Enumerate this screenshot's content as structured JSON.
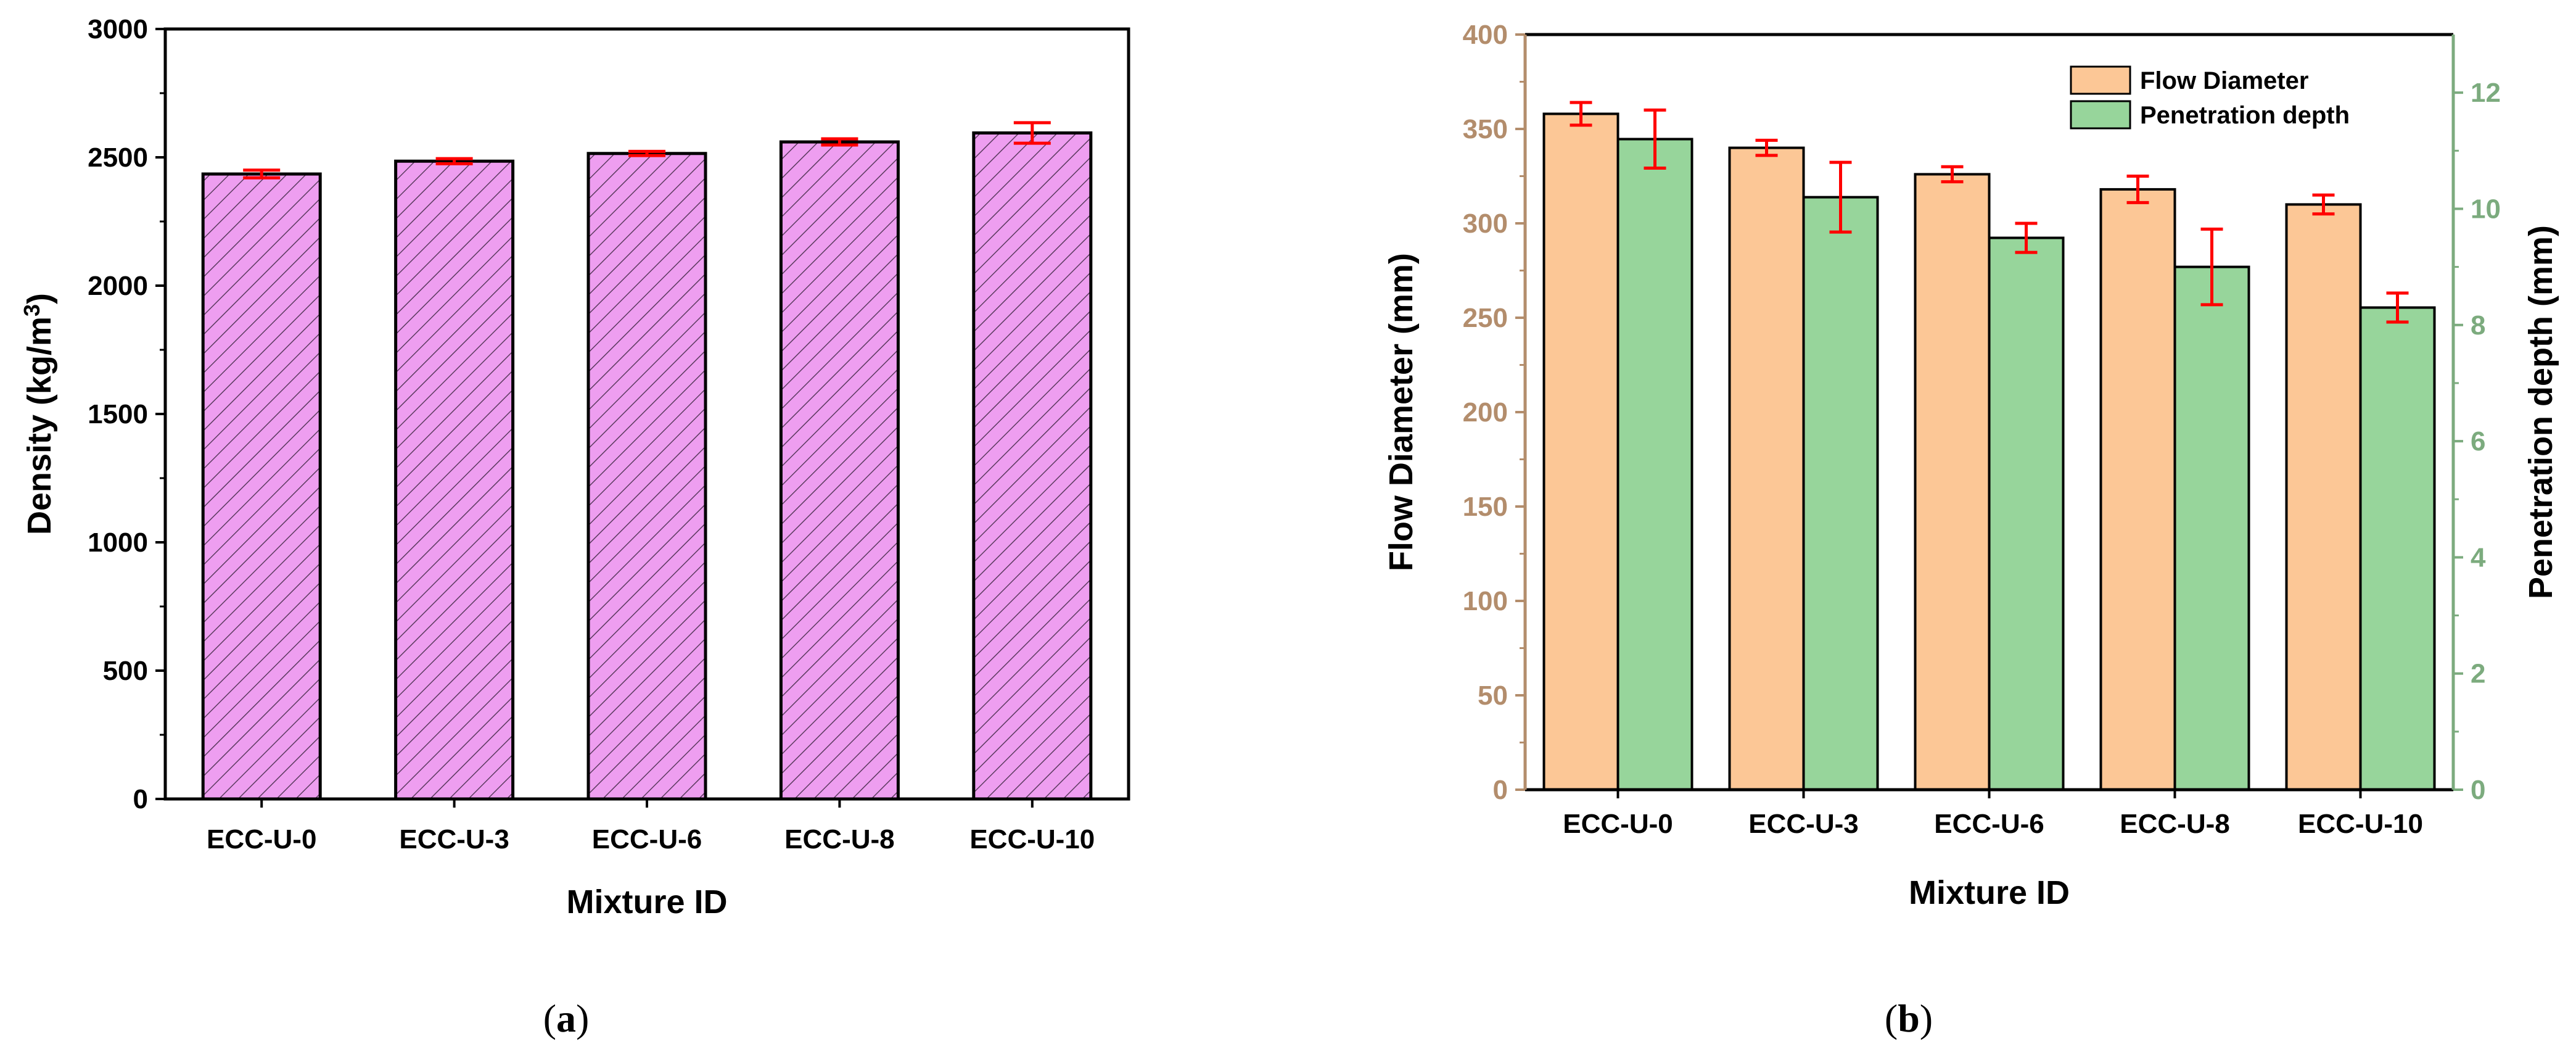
{
  "captions": {
    "a": "a",
    "b": "b"
  },
  "colors": {
    "density_bar": "#ee9ef0",
    "flow_bar": "#fcc796",
    "penetration_bar": "#97d59b",
    "flow_axis": "#b38d6c",
    "penetration_axis": "#7cab7e",
    "error_bar": "#ff0000",
    "frame": "#000000"
  },
  "chart_data": [
    {
      "panel": "a",
      "type": "bar",
      "categories": [
        "ECC-U-0",
        "ECC-U-3",
        "ECC-U-6",
        "ECC-U-8",
        "ECC-U-10"
      ],
      "xlabel": "Mixture ID",
      "ylabel": "Density (kg/m³)",
      "ylim": [
        0,
        3000
      ],
      "yticks": [
        0,
        500,
        1000,
        1500,
        2000,
        2500,
        3000
      ],
      "grid": false,
      "series": [
        {
          "values": [
            2435,
            2485,
            2515,
            2560,
            2595
          ],
          "errors": [
            15,
            10,
            8,
            12,
            40
          ],
          "pattern": "hatch"
        }
      ]
    },
    {
      "panel": "b",
      "type": "bar",
      "categories": [
        "ECC-U-0",
        "ECC-U-3",
        "ECC-U-6",
        "ECC-U-8",
        "ECC-U-10"
      ],
      "xlabel": "Mixture ID",
      "ylabel": "Flow Diameter (mm)",
      "ylabel_right": "Penetration depth (mm)",
      "ylim": [
        0,
        400
      ],
      "yticks": [
        0,
        50,
        100,
        150,
        200,
        250,
        300,
        350,
        400
      ],
      "ylim_right": [
        0,
        13
      ],
      "yticks_right": [
        0,
        2,
        4,
        6,
        8,
        10,
        12
      ],
      "legend_position": "top-right",
      "grid": false,
      "series": [
        {
          "name": "Flow Diameter",
          "axis": "left",
          "values": [
            358,
            340,
            326,
            318,
            310
          ],
          "errors": [
            6,
            4,
            4,
            7,
            5
          ]
        },
        {
          "name": "Penetration depth",
          "axis": "right",
          "values": [
            11.2,
            10.2,
            9.5,
            9.0,
            8.3
          ],
          "errors": [
            0.5,
            0.6,
            0.25,
            0.65,
            0.25
          ]
        }
      ]
    }
  ]
}
